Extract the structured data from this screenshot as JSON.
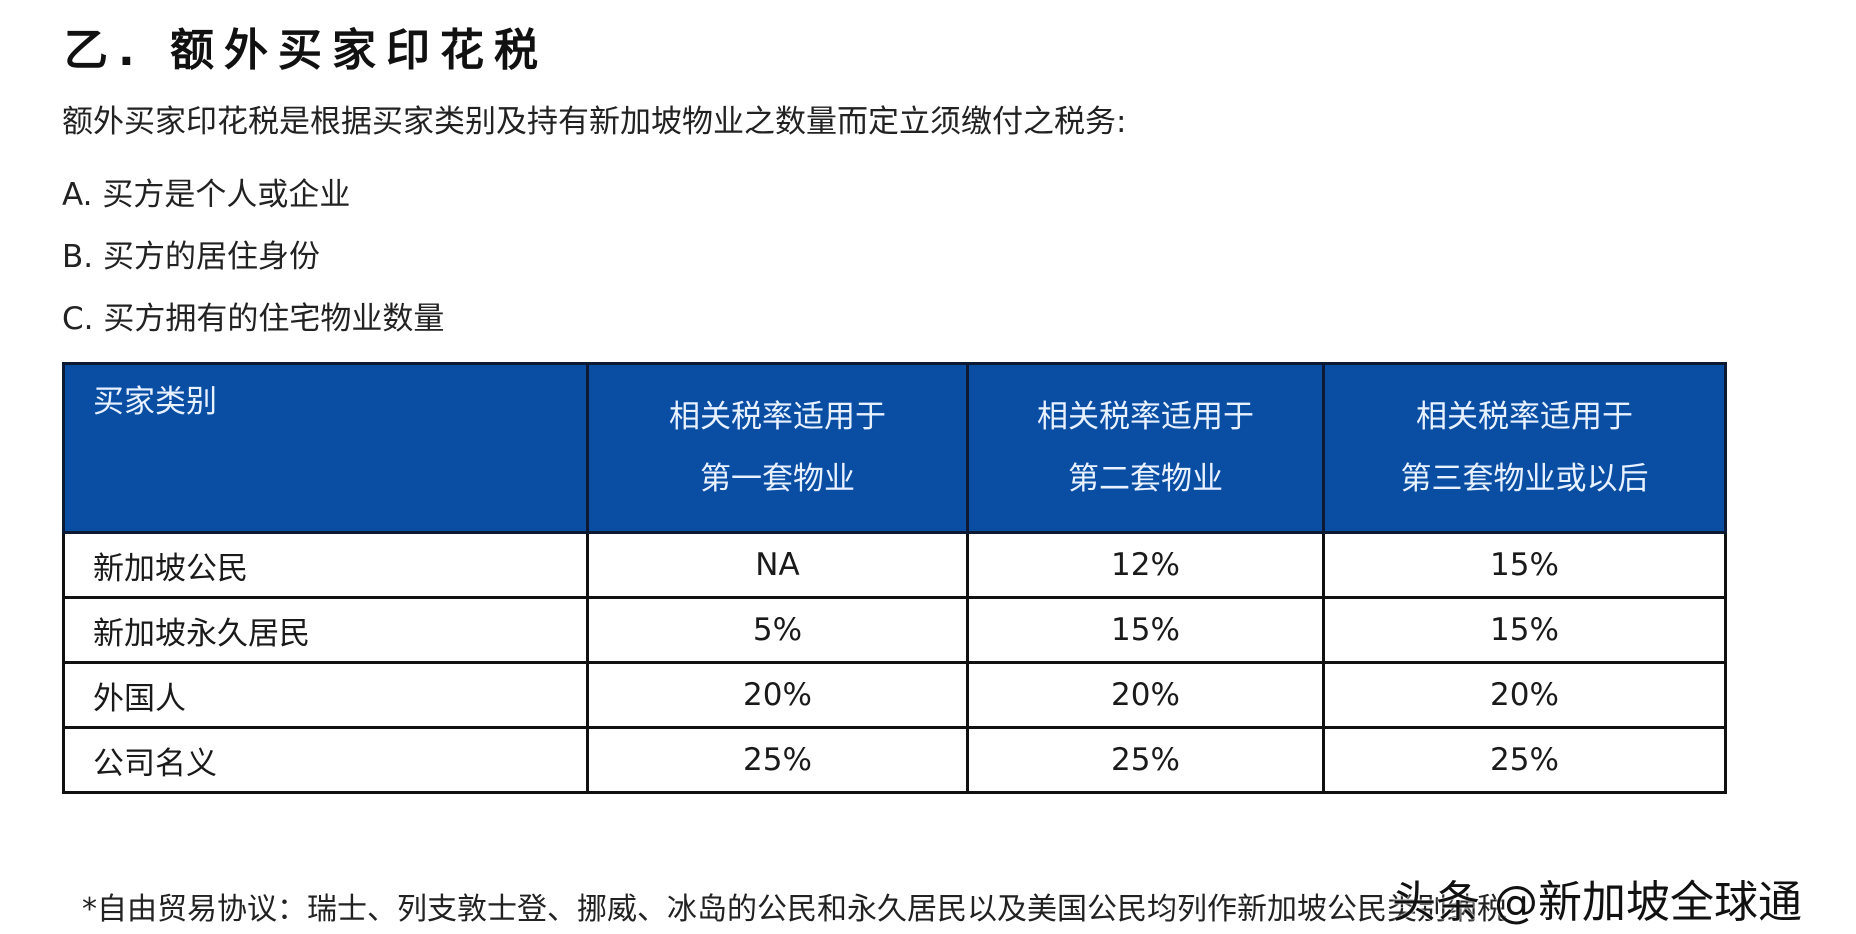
{
  "title": "乙. 额外买家印花税",
  "intro": "额外买家印花税是根据买家类别及持有新加坡物业之数量而定立须缴付之税务:",
  "criteria": [
    "A. 买方是个人或企业",
    "B. 买方的居住身份",
    "C. 买方拥有的住宅物业数量"
  ],
  "table": {
    "header": {
      "category": "买家类别",
      "first": [
        "相关税率适用于",
        "第一套物业"
      ],
      "second": [
        "相关税率适用于",
        "第二套物业"
      ],
      "third": [
        "相关税率适用于",
        "第三套物业或以后"
      ]
    },
    "rows": [
      {
        "category": "新加坡公民",
        "first": "NA",
        "second": "12%",
        "third": "15%"
      },
      {
        "category": "新加坡永久居民",
        "first": "5%",
        "second": "15%",
        "third": "15%"
      },
      {
        "category": "外国人",
        "first": "20%",
        "second": "20%",
        "third": "20%"
      },
      {
        "category": "公司名义",
        "first": "25%",
        "second": "25%",
        "third": "25%"
      }
    ]
  },
  "footnote": "*自由贸易协议：瑞士、列支敦士登、挪威、冰岛的公民和永久居民以及美国公民均列作新加坡公民类别纳税",
  "watermark": "头条 @新加坡全球通",
  "colors": {
    "header_bg": "#0a4ea4",
    "header_text": "#e8f1ff",
    "border": "#111111"
  }
}
